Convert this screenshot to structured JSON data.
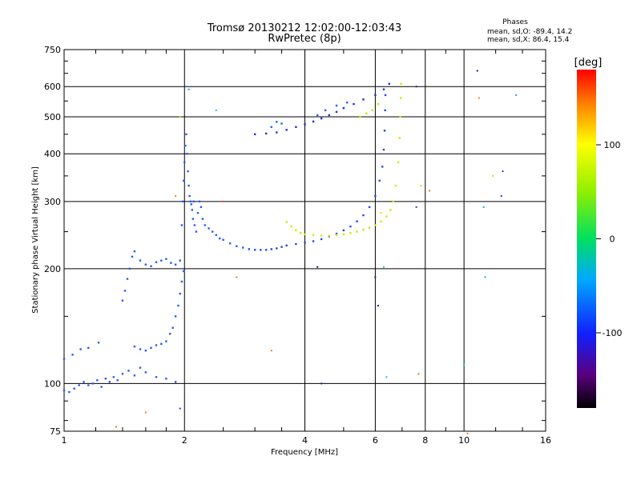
{
  "title": "Tromsø 20130212 12:02:00-12:03:43",
  "subtitle": "RwPretec (8p)",
  "phases": {
    "heading": "Phases",
    "o_line": "mean, sd,O: -89.4, 14.2",
    "x_line": "mean, sd,X:  86.4, 15.4"
  },
  "colorbar": {
    "label": "[deg]",
    "min": -180,
    "max": 180,
    "ticks": [
      {
        "value": 100,
        "label": "100"
      },
      {
        "value": 0,
        "label": "0"
      },
      {
        "value": -100,
        "label": "-100"
      }
    ]
  },
  "chart_data": {
    "type": "scatter",
    "xlabel": "Frequency [MHz]",
    "ylabel": "Stationary phase Virtual Height [km]",
    "xscale": "log",
    "yscale": "log",
    "xlim": [
      1,
      16
    ],
    "ylim": [
      75,
      750
    ],
    "xticks": [
      {
        "value": 1,
        "label": "1"
      },
      {
        "value": 2,
        "label": "2"
      },
      {
        "value": 4,
        "label": "4"
      },
      {
        "value": 6,
        "label": "6"
      },
      {
        "value": 8,
        "label": "8"
      },
      {
        "value": 10,
        "label": "10"
      },
      {
        "value": 16,
        "label": "16"
      }
    ],
    "yticks": [
      {
        "value": 75,
        "label": "75"
      },
      {
        "value": 100,
        "label": "100"
      },
      {
        "value": 200,
        "label": "200"
      },
      {
        "value": 300,
        "label": "300"
      },
      {
        "value": 400,
        "label": "400"
      },
      {
        "value": 500,
        "label": "500"
      },
      {
        "value": 600,
        "label": "600"
      },
      {
        "value": 750,
        "label": "750"
      }
    ],
    "x_grid": [
      2,
      4,
      6,
      8,
      10
    ],
    "y_grid": [
      100,
      200,
      300,
      400,
      500,
      600
    ],
    "x_minor_ticks": [
      1.2,
      1.4,
      1.6,
      1.8,
      2.5,
      3,
      3.5,
      5,
      7,
      9,
      12,
      14
    ],
    "y_minor_ticks": [
      80,
      90,
      150,
      250,
      350,
      450,
      550,
      650,
      700
    ],
    "series": [
      {
        "color": "#2a5cf0",
        "points": [
          [
            1.0,
            96
          ],
          [
            1.03,
            95
          ],
          [
            1.06,
            97
          ],
          [
            1.09,
            99
          ],
          [
            1.12,
            101
          ],
          [
            1.15,
            99
          ],
          [
            1.18,
            100
          ],
          [
            1.21,
            102
          ],
          [
            1.24,
            98
          ],
          [
            1.27,
            103
          ],
          [
            1.3,
            101
          ],
          [
            1.33,
            104
          ],
          [
            1.36,
            102
          ],
          [
            1.4,
            106
          ],
          [
            1.45,
            108
          ],
          [
            1.5,
            105
          ],
          [
            1.55,
            110
          ],
          [
            1.6,
            107
          ],
          [
            1.7,
            104
          ],
          [
            1.8,
            103
          ],
          [
            1.9,
            101
          ]
        ]
      },
      {
        "color": "#2a5cf0",
        "points": [
          [
            1.0,
            116
          ],
          [
            1.05,
            119
          ],
          [
            1.1,
            123
          ],
          [
            1.15,
            124
          ],
          [
            1.22,
            128
          ]
        ]
      },
      {
        "color": "#2a5cf0",
        "points": [
          [
            1.5,
            125
          ],
          [
            1.55,
            123
          ],
          [
            1.6,
            122
          ],
          [
            1.65,
            124
          ],
          [
            1.7,
            126
          ],
          [
            1.75,
            127
          ],
          [
            1.8,
            129
          ],
          [
            1.84,
            135
          ],
          [
            1.87,
            140
          ],
          [
            1.9,
            150
          ],
          [
            1.93,
            160
          ],
          [
            1.95,
            172
          ],
          [
            1.97,
            185
          ],
          [
            1.99,
            197
          ]
        ]
      },
      {
        "color": "#2a5cf0",
        "points": [
          [
            1.4,
            165
          ],
          [
            1.42,
            175
          ],
          [
            1.44,
            188
          ],
          [
            1.46,
            200
          ],
          [
            1.48,
            215
          ],
          [
            1.5,
            222
          ],
          [
            1.55,
            210
          ],
          [
            1.6,
            205
          ],
          [
            1.65,
            203
          ],
          [
            1.7,
            208
          ],
          [
            1.75,
            210
          ],
          [
            1.8,
            212
          ],
          [
            1.85,
            207
          ],
          [
            1.9,
            205
          ]
        ]
      },
      {
        "color": "#2a5cf0",
        "points": [
          [
            1.95,
            210
          ],
          [
            1.97,
            260
          ],
          [
            1.98,
            300
          ],
          [
            1.99,
            340
          ],
          [
            2.0,
            380
          ],
          [
            2.01,
            420
          ],
          [
            2.02,
            450
          ],
          [
            2.03,
            400
          ],
          [
            2.04,
            360
          ],
          [
            2.05,
            330
          ],
          [
            2.06,
            310
          ],
          [
            2.07,
            300
          ],
          [
            2.08,
            295
          ],
          [
            2.09,
            285
          ],
          [
            2.1,
            270
          ],
          [
            2.11,
            300
          ],
          [
            2.12,
            260
          ],
          [
            2.14,
            250
          ],
          [
            2.16,
            280
          ],
          [
            2.18,
            300
          ],
          [
            2.2,
            290
          ],
          [
            2.22,
            270
          ],
          [
            2.25,
            260
          ],
          [
            2.3,
            255
          ],
          [
            2.35,
            250
          ],
          [
            2.4,
            245
          ],
          [
            2.45,
            240
          ],
          [
            2.5,
            238
          ],
          [
            2.6,
            233
          ],
          [
            2.7,
            229
          ],
          [
            2.8,
            227
          ]
        ]
      },
      {
        "color": "#2a48e0",
        "points": [
          [
            2.9,
            225
          ],
          [
            3.0,
            224
          ],
          [
            3.1,
            224
          ],
          [
            3.2,
            224
          ],
          [
            3.3,
            225
          ],
          [
            3.4,
            226
          ],
          [
            3.5,
            228
          ],
          [
            3.6,
            230
          ],
          [
            3.8,
            232
          ],
          [
            4.0,
            234
          ],
          [
            4.2,
            236
          ],
          [
            4.4,
            239
          ],
          [
            4.6,
            243
          ],
          [
            4.8,
            247
          ],
          [
            5.0,
            252
          ],
          [
            5.2,
            258
          ],
          [
            5.4,
            266
          ],
          [
            5.6,
            276
          ],
          [
            5.8,
            290
          ],
          [
            6.0,
            310
          ],
          [
            6.15,
            340
          ],
          [
            6.25,
            370
          ],
          [
            6.3,
            410
          ],
          [
            6.33,
            460
          ],
          [
            6.35,
            520
          ],
          [
            6.36,
            570
          ]
        ]
      },
      {
        "color": "#d8e400",
        "points": [
          [
            3.6,
            265
          ],
          [
            3.7,
            258
          ],
          [
            3.8,
            252
          ],
          [
            3.9,
            248
          ],
          [
            4.0,
            246
          ],
          [
            4.2,
            245
          ],
          [
            4.4,
            244
          ],
          [
            4.6,
            244
          ],
          [
            4.8,
            245
          ],
          [
            5.0,
            246
          ],
          [
            5.2,
            248
          ],
          [
            5.4,
            250
          ],
          [
            5.6,
            253
          ],
          [
            5.8,
            256
          ],
          [
            6.0,
            260
          ],
          [
            6.2,
            266
          ],
          [
            6.4,
            274
          ],
          [
            6.55,
            285
          ],
          [
            6.65,
            300
          ],
          [
            6.75,
            330
          ],
          [
            6.85,
            380
          ],
          [
            6.9,
            440
          ],
          [
            6.93,
            500
          ],
          [
            6.95,
            560
          ],
          [
            6.96,
            610
          ]
        ]
      },
      {
        "color": "#2030d8",
        "points": [
          [
            3.0,
            450
          ],
          [
            3.2,
            452
          ],
          [
            3.4,
            455
          ],
          [
            3.6,
            462
          ],
          [
            3.8,
            470
          ],
          [
            4.0,
            478
          ],
          [
            4.2,
            486
          ],
          [
            4.4,
            495
          ],
          [
            4.6,
            505
          ],
          [
            4.8,
            515
          ],
          [
            5.0,
            527
          ],
          [
            5.3,
            540
          ],
          [
            5.6,
            555
          ],
          [
            6.0,
            570
          ],
          [
            6.3,
            590
          ],
          [
            6.5,
            610
          ]
        ]
      },
      {
        "color": "#c8e000",
        "points": [
          [
            5.5,
            500
          ],
          [
            5.7,
            510
          ],
          [
            5.9,
            520
          ],
          [
            6.1,
            540
          ]
        ]
      },
      {
        "color": "#2a5cf0",
        "points": [
          [
            3.3,
            470
          ],
          [
            3.4,
            485
          ],
          [
            3.5,
            480
          ],
          [
            4.3,
            505
          ],
          [
            4.5,
            520
          ],
          [
            4.8,
            535
          ],
          [
            5.1,
            545
          ]
        ]
      }
    ],
    "outliers": [
      {
        "x": 2.4,
        "y": 520,
        "color": "#20c0d0"
      },
      {
        "x": 2.05,
        "y": 590,
        "color": "#4080ff"
      },
      {
        "x": 10.8,
        "y": 660,
        "color": "#1020a0"
      },
      {
        "x": 10.9,
        "y": 560,
        "color": "#ff8000"
      },
      {
        "x": 13.5,
        "y": 570,
        "color": "#4080ff"
      },
      {
        "x": 11.8,
        "y": 350,
        "color": "#d0e000"
      },
      {
        "x": 12.5,
        "y": 360,
        "color": "#2040e0"
      },
      {
        "x": 12.4,
        "y": 310,
        "color": "#2040e0"
      },
      {
        "x": 11.2,
        "y": 290,
        "color": "#00c0c0"
      },
      {
        "x": 11.3,
        "y": 190,
        "color": "#00c0c0"
      },
      {
        "x": 4.3,
        "y": 202,
        "color": "#202080"
      },
      {
        "x": 6.0,
        "y": 190,
        "color": "#202080"
      },
      {
        "x": 6.1,
        "y": 160,
        "color": "#202080"
      },
      {
        "x": 7.6,
        "y": 600,
        "color": "#202080"
      },
      {
        "x": 3.3,
        "y": 122,
        "color": "#e08030"
      },
      {
        "x": 4.4,
        "y": 100,
        "color": "#202080"
      },
      {
        "x": 6.4,
        "y": 104,
        "color": "#20c0d0"
      },
      {
        "x": 7.7,
        "y": 106,
        "color": "#e08030"
      },
      {
        "x": 10.0,
        "y": 112,
        "color": "#20c0d0"
      },
      {
        "x": 1.6,
        "y": 84,
        "color": "#e08030"
      },
      {
        "x": 1.35,
        "y": 77,
        "color": "#e08030"
      },
      {
        "x": 1.95,
        "y": 86,
        "color": "#2040e0"
      },
      {
        "x": 2.7,
        "y": 190,
        "color": "#e08030"
      },
      {
        "x": 2.5,
        "y": 300,
        "color": "#ff4040"
      },
      {
        "x": 6.2,
        "y": 280,
        "color": "#e0e000"
      },
      {
        "x": 7.6,
        "y": 290,
        "color": "#2040e0"
      },
      {
        "x": 7.8,
        "y": 330,
        "color": "#e0e000"
      },
      {
        "x": 8.2,
        "y": 320,
        "color": "#e08030"
      },
      {
        "x": 1.9,
        "y": 310,
        "color": "#ff8000"
      },
      {
        "x": 1.95,
        "y": 500,
        "color": "#e0c000"
      },
      {
        "x": 10.2,
        "y": 74,
        "color": "#e08030"
      },
      {
        "x": 6.3,
        "y": 202,
        "color": "#20c0d0"
      }
    ]
  }
}
